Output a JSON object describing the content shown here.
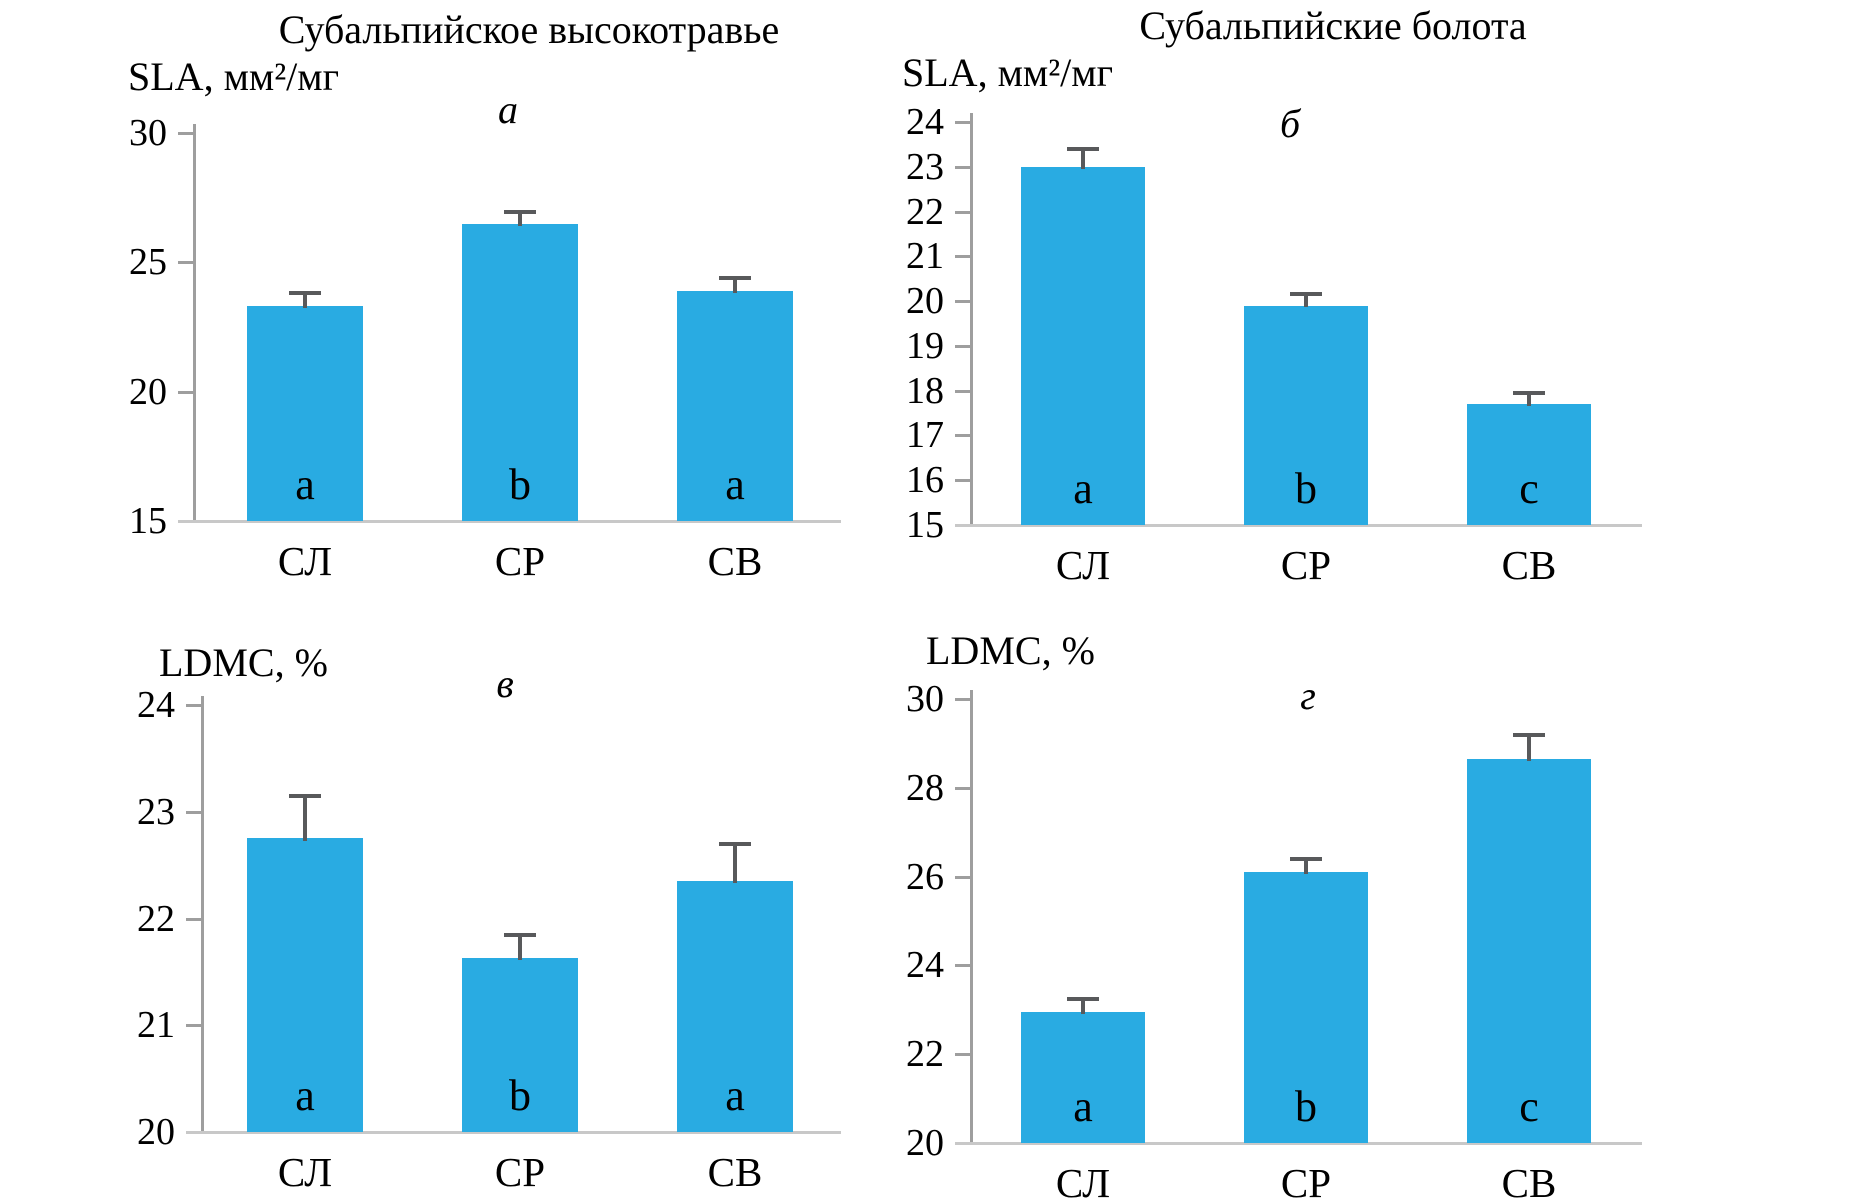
{
  "figure": {
    "colors": {
      "bar": "#29ABE2",
      "axis": "#9E9E9E",
      "baseline": "#C8C8C8",
      "error": "#58595B",
      "text": "#000000"
    }
  },
  "chart_data": [
    {
      "type": "bar",
      "panel_label": "а",
      "title": "Субальпийское высокотравье",
      "ylabel": "SLA, мм²/мг",
      "categories": [
        "СЛ",
        "СР",
        "СВ"
      ],
      "values": [
        23.3,
        26.5,
        23.9
      ],
      "error_up": [
        0.5,
        0.45,
        0.5
      ],
      "sig_letters": [
        "a",
        "b",
        "a"
      ],
      "ylim": [
        15,
        30
      ],
      "yticks": [
        15,
        20,
        25,
        30
      ],
      "grid": false,
      "legend": false
    },
    {
      "type": "bar",
      "panel_label": "б",
      "title": "Субальпийские болота",
      "ylabel": "SLA, мм²/мг",
      "categories": [
        "СЛ",
        "СР",
        "СВ"
      ],
      "values": [
        23.0,
        19.9,
        17.7
      ],
      "error_up": [
        0.4,
        0.25,
        0.25
      ],
      "sig_letters": [
        "a",
        "b",
        "c"
      ],
      "ylim": [
        15,
        24
      ],
      "yticks": [
        15,
        16,
        17,
        18,
        19,
        20,
        21,
        22,
        23,
        24
      ],
      "grid": false,
      "legend": false
    },
    {
      "type": "bar",
      "panel_label": "в",
      "title": "",
      "ylabel": "LDMC, %",
      "categories": [
        "СЛ",
        "СР",
        "СВ"
      ],
      "values": [
        22.75,
        21.63,
        22.35
      ],
      "error_up": [
        0.4,
        0.22,
        0.35
      ],
      "sig_letters": [
        "a",
        "b",
        "a"
      ],
      "ylim": [
        20,
        24
      ],
      "yticks": [
        20,
        21,
        22,
        23,
        24
      ],
      "grid": false,
      "legend": false
    },
    {
      "type": "bar",
      "panel_label": "г",
      "title": "",
      "ylabel": "LDMC, %",
      "categories": [
        "СЛ",
        "СР",
        "СВ"
      ],
      "values": [
        22.95,
        26.1,
        28.65
      ],
      "error_up": [
        0.3,
        0.3,
        0.55
      ],
      "sig_letters": [
        "a",
        "b",
        "c"
      ],
      "ylim": [
        20,
        30
      ],
      "yticks": [
        20,
        22,
        24,
        26,
        28,
        30
      ],
      "grid": false,
      "legend": false
    }
  ]
}
